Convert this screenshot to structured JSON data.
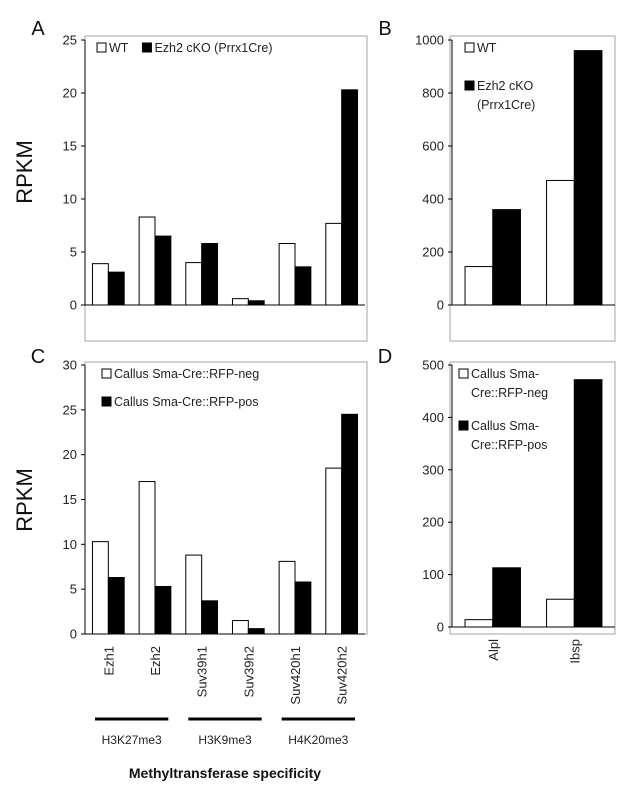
{
  "chart_data": [
    {
      "panel": "A",
      "type": "bar",
      "ylabel": "RPKM",
      "ylim": [
        0,
        25
      ],
      "yticks": [
        "0",
        "5",
        "10",
        "15",
        "20",
        "25"
      ],
      "categories": [
        "Ezh1",
        "Ezh2",
        "Suv39h1",
        "Suv39h2",
        "Suv420h1",
        "Suv420h2"
      ],
      "series": [
        {
          "name": "WT",
          "values": [
            3.9,
            8.3,
            4.0,
            0.6,
            5.8,
            7.7
          ]
        },
        {
          "name": "Ezh2 cKO (Prrx1Cre)",
          "values": [
            3.1,
            6.5,
            5.8,
            0.4,
            3.6,
            20.3
          ]
        }
      ],
      "legend": {
        "position": "top-left",
        "lines": [
          [
            "WT"
          ],
          [
            "Ezh2 cKO (Prrx1Cre)"
          ]
        ]
      },
      "grid": false
    },
    {
      "panel": "B",
      "type": "bar",
      "ylabel": "",
      "ylim": [
        0,
        1000
      ],
      "yticks": [
        "0",
        "200",
        "400",
        "600",
        "800",
        "1000"
      ],
      "categories": [
        "Alpl",
        "Ibsp"
      ],
      "series": [
        {
          "name": "WT",
          "values": [
            145,
            470
          ]
        },
        {
          "name": "Ezh2 cKO (Prrx1Cre)",
          "values": [
            360,
            960
          ]
        }
      ],
      "legend": {
        "position": "top-left",
        "lines": [
          [
            "WT"
          ],
          [
            "Ezh2 cKO",
            "(Prrx1Cre)"
          ]
        ]
      },
      "grid": false
    },
    {
      "panel": "C",
      "type": "bar",
      "ylabel": "RPKM",
      "ylim": [
        0,
        30
      ],
      "yticks": [
        "0",
        "5",
        "10",
        "15",
        "20",
        "25",
        "30"
      ],
      "categories": [
        "Ezh1",
        "Ezh2",
        "Suv39h1",
        "Suv39h2",
        "Suv420h1",
        "Suv420h2"
      ],
      "series": [
        {
          "name": "Callus Sma-Cre::RFP-neg",
          "values": [
            10.3,
            17.0,
            8.8,
            1.5,
            8.1,
            18.5
          ]
        },
        {
          "name": "Callus Sma-Cre::RFP-pos",
          "values": [
            6.3,
            5.3,
            3.7,
            0.6,
            5.8,
            24.5
          ]
        }
      ],
      "legend": {
        "position": "top-left",
        "lines": [
          [
            "Callus Sma-Cre::RFP-neg"
          ],
          [
            "Callus Sma-Cre::RFP-pos"
          ]
        ]
      },
      "xgroups": [
        {
          "label": "H3K27me3",
          "span": [
            0,
            1
          ]
        },
        {
          "label": "H3K9me3",
          "span": [
            2,
            3
          ]
        },
        {
          "label": "H4K20me3",
          "span": [
            4,
            5
          ]
        }
      ],
      "xlabel": "Methyltransferase specificity",
      "grid": false
    },
    {
      "panel": "D",
      "type": "bar",
      "ylabel": "",
      "ylim": [
        0,
        500
      ],
      "yticks": [
        "0",
        "100",
        "200",
        "300",
        "400",
        "500"
      ],
      "categories": [
        "Alpl",
        "Ibsp"
      ],
      "series": [
        {
          "name": "Callus Sma-Cre::RFP-neg",
          "values": [
            14,
            53
          ]
        },
        {
          "name": "Callus Sma-Cre::RFP-pos",
          "values": [
            113,
            472
          ]
        }
      ],
      "legend": {
        "position": "top-left",
        "lines": [
          [
            "Callus Sma-",
            "Cre::RFP-neg"
          ],
          [
            "Callus Sma-",
            "Cre::RFP-pos"
          ]
        ]
      },
      "grid": false
    }
  ],
  "colors": {
    "series_0_fill": "#ffffff",
    "series_1_fill": "#000000",
    "outline": "#000000",
    "frame": "#a6a6a6"
  }
}
